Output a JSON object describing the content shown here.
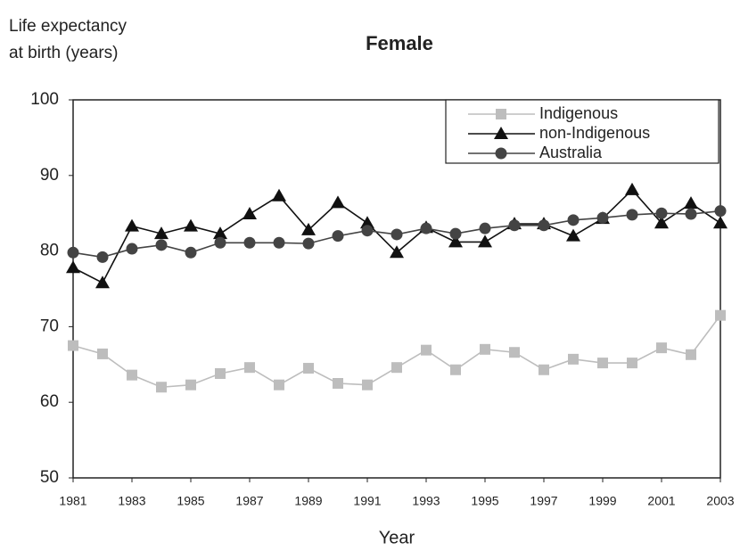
{
  "chart_data": {
    "type": "line",
    "title": "Female",
    "y_label": [
      "Life expectancy",
      "at birth (years)"
    ],
    "x_label": "Year",
    "x": [
      1981,
      1982,
      1983,
      1984,
      1985,
      1986,
      1987,
      1988,
      1989,
      1990,
      1991,
      1992,
      1993,
      1994,
      1995,
      1996,
      1997,
      1998,
      1999,
      2000,
      2001,
      2002,
      2003
    ],
    "xlim": [
      1981,
      2003
    ],
    "xticks": [
      1981,
      1983,
      1985,
      1987,
      1989,
      1991,
      1993,
      1995,
      1997,
      1999,
      2001,
      2003
    ],
    "ylim": [
      50,
      100
    ],
    "yticks": [
      50,
      60,
      70,
      80,
      90,
      100
    ],
    "grid": false,
    "legend": "upper right",
    "series": [
      {
        "name": "Indigenous",
        "color": "#bdbdbd",
        "marker": "square",
        "values": [
          67.5,
          66.4,
          63.6,
          62.0,
          62.3,
          63.8,
          64.6,
          62.3,
          64.5,
          62.5,
          62.3,
          64.6,
          66.9,
          64.3,
          67.0,
          66.6,
          64.3,
          65.7,
          65.2,
          65.2,
          67.2,
          66.3,
          71.5
        ]
      },
      {
        "name": "non-Indigenous",
        "color": "#111111",
        "marker": "triangle",
        "values": [
          77.8,
          75.8,
          83.3,
          82.3,
          83.3,
          82.3,
          84.9,
          87.3,
          82.8,
          86.4,
          83.7,
          79.8,
          83.1,
          81.2,
          81.2,
          83.6,
          83.6,
          82.0,
          84.3,
          88.1,
          83.7,
          86.3,
          83.7
        ]
      },
      {
        "name": "Australia",
        "color": "#444444",
        "marker": "circle",
        "values": [
          79.8,
          79.2,
          80.3,
          80.8,
          79.8,
          81.1,
          81.1,
          81.1,
          81.0,
          82.0,
          82.7,
          82.2,
          83.0,
          82.3,
          83.0,
          83.4,
          83.4,
          84.1,
          84.4,
          84.8,
          85.0,
          84.9,
          85.3
        ]
      }
    ]
  }
}
